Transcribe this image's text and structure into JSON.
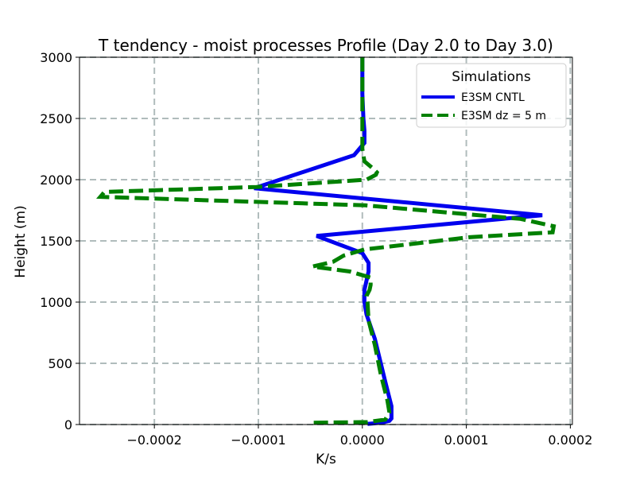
{
  "chart_data": {
    "type": "line",
    "title": "T tendency - moist processes Profile (Day 2.0 to Day 3.0)",
    "xlabel": "K/s",
    "ylabel": "Height (m)",
    "xlim": [
      -0.000272,
      0.000202
    ],
    "ylim": [
      0,
      3000
    ],
    "xticks": [
      -0.0002,
      -0.0001,
      0.0,
      0.0001,
      0.0002
    ],
    "xtick_labels": [
      "−0.0002",
      "−0.0001",
      "0.0000",
      "0.0001",
      "0.0002"
    ],
    "yticks": [
      0,
      500,
      1000,
      1500,
      2000,
      2500,
      3000
    ],
    "ytick_labels": [
      "0",
      "500",
      "1000",
      "1500",
      "2000",
      "2500",
      "3000"
    ],
    "grid": true,
    "legend": {
      "title": "Simulations",
      "position": "top-right"
    },
    "series": [
      {
        "name": "E3SM CNTL",
        "color": "#0000ee",
        "style": "solid",
        "x": [
          0.0,
          0.0,
          1e-06,
          2e-06,
          2e-06,
          -8e-06,
          -0.000104,
          0.000173,
          -4.4e-05,
          0.0,
          6e-06,
          6e-06,
          2e-06,
          2e-06,
          4e-06,
          1.2e-05,
          2.2e-05,
          2.8e-05,
          2.8e-05,
          2.6e-05,
          1.8e-05,
          5e-06
        ],
        "y": [
          3000,
          2700,
          2500,
          2400,
          2300,
          2200,
          1930,
          1710,
          1540,
          1400,
          1320,
          1250,
          1100,
          1000,
          900,
          700,
          350,
          150,
          50,
          30,
          15,
          5
        ]
      },
      {
        "name": "E3SM dz = 5 m",
        "color": "#008000",
        "style": "dashed",
        "x": [
          0.0,
          0.0,
          0.0,
          0.0,
          0.0,
          2e-06,
          9e-06,
          1.4e-05,
          1.3e-05,
          4e-06,
          -0.000102,
          -0.000248,
          -0.000252,
          3e-06,
          0.000152,
          0.000184,
          0.000183,
          0.000103,
          2e-06,
          -1.8e-05,
          -2.8e-05,
          -4.8e-05,
          -1.2e-05,
          8e-06,
          8e-06,
          7e-06,
          4e-06,
          5e-06,
          6e-06,
          1.2e-05,
          1.8e-05,
          2.4e-05,
          2.6e-05,
          2.2e-05,
          5e-06,
          -4.7e-05
        ],
        "y": [
          3000,
          2900,
          2800,
          2500,
          2250,
          2150,
          2100,
          2060,
          2040,
          2000,
          1940,
          1900,
          1860,
          1790,
          1680,
          1620,
          1570,
          1530,
          1430,
          1380,
          1330,
          1290,
          1250,
          1200,
          1140,
          1100,
          1050,
          1000,
          850,
          650,
          400,
          200,
          100,
          40,
          20,
          15
        ]
      }
    ]
  }
}
